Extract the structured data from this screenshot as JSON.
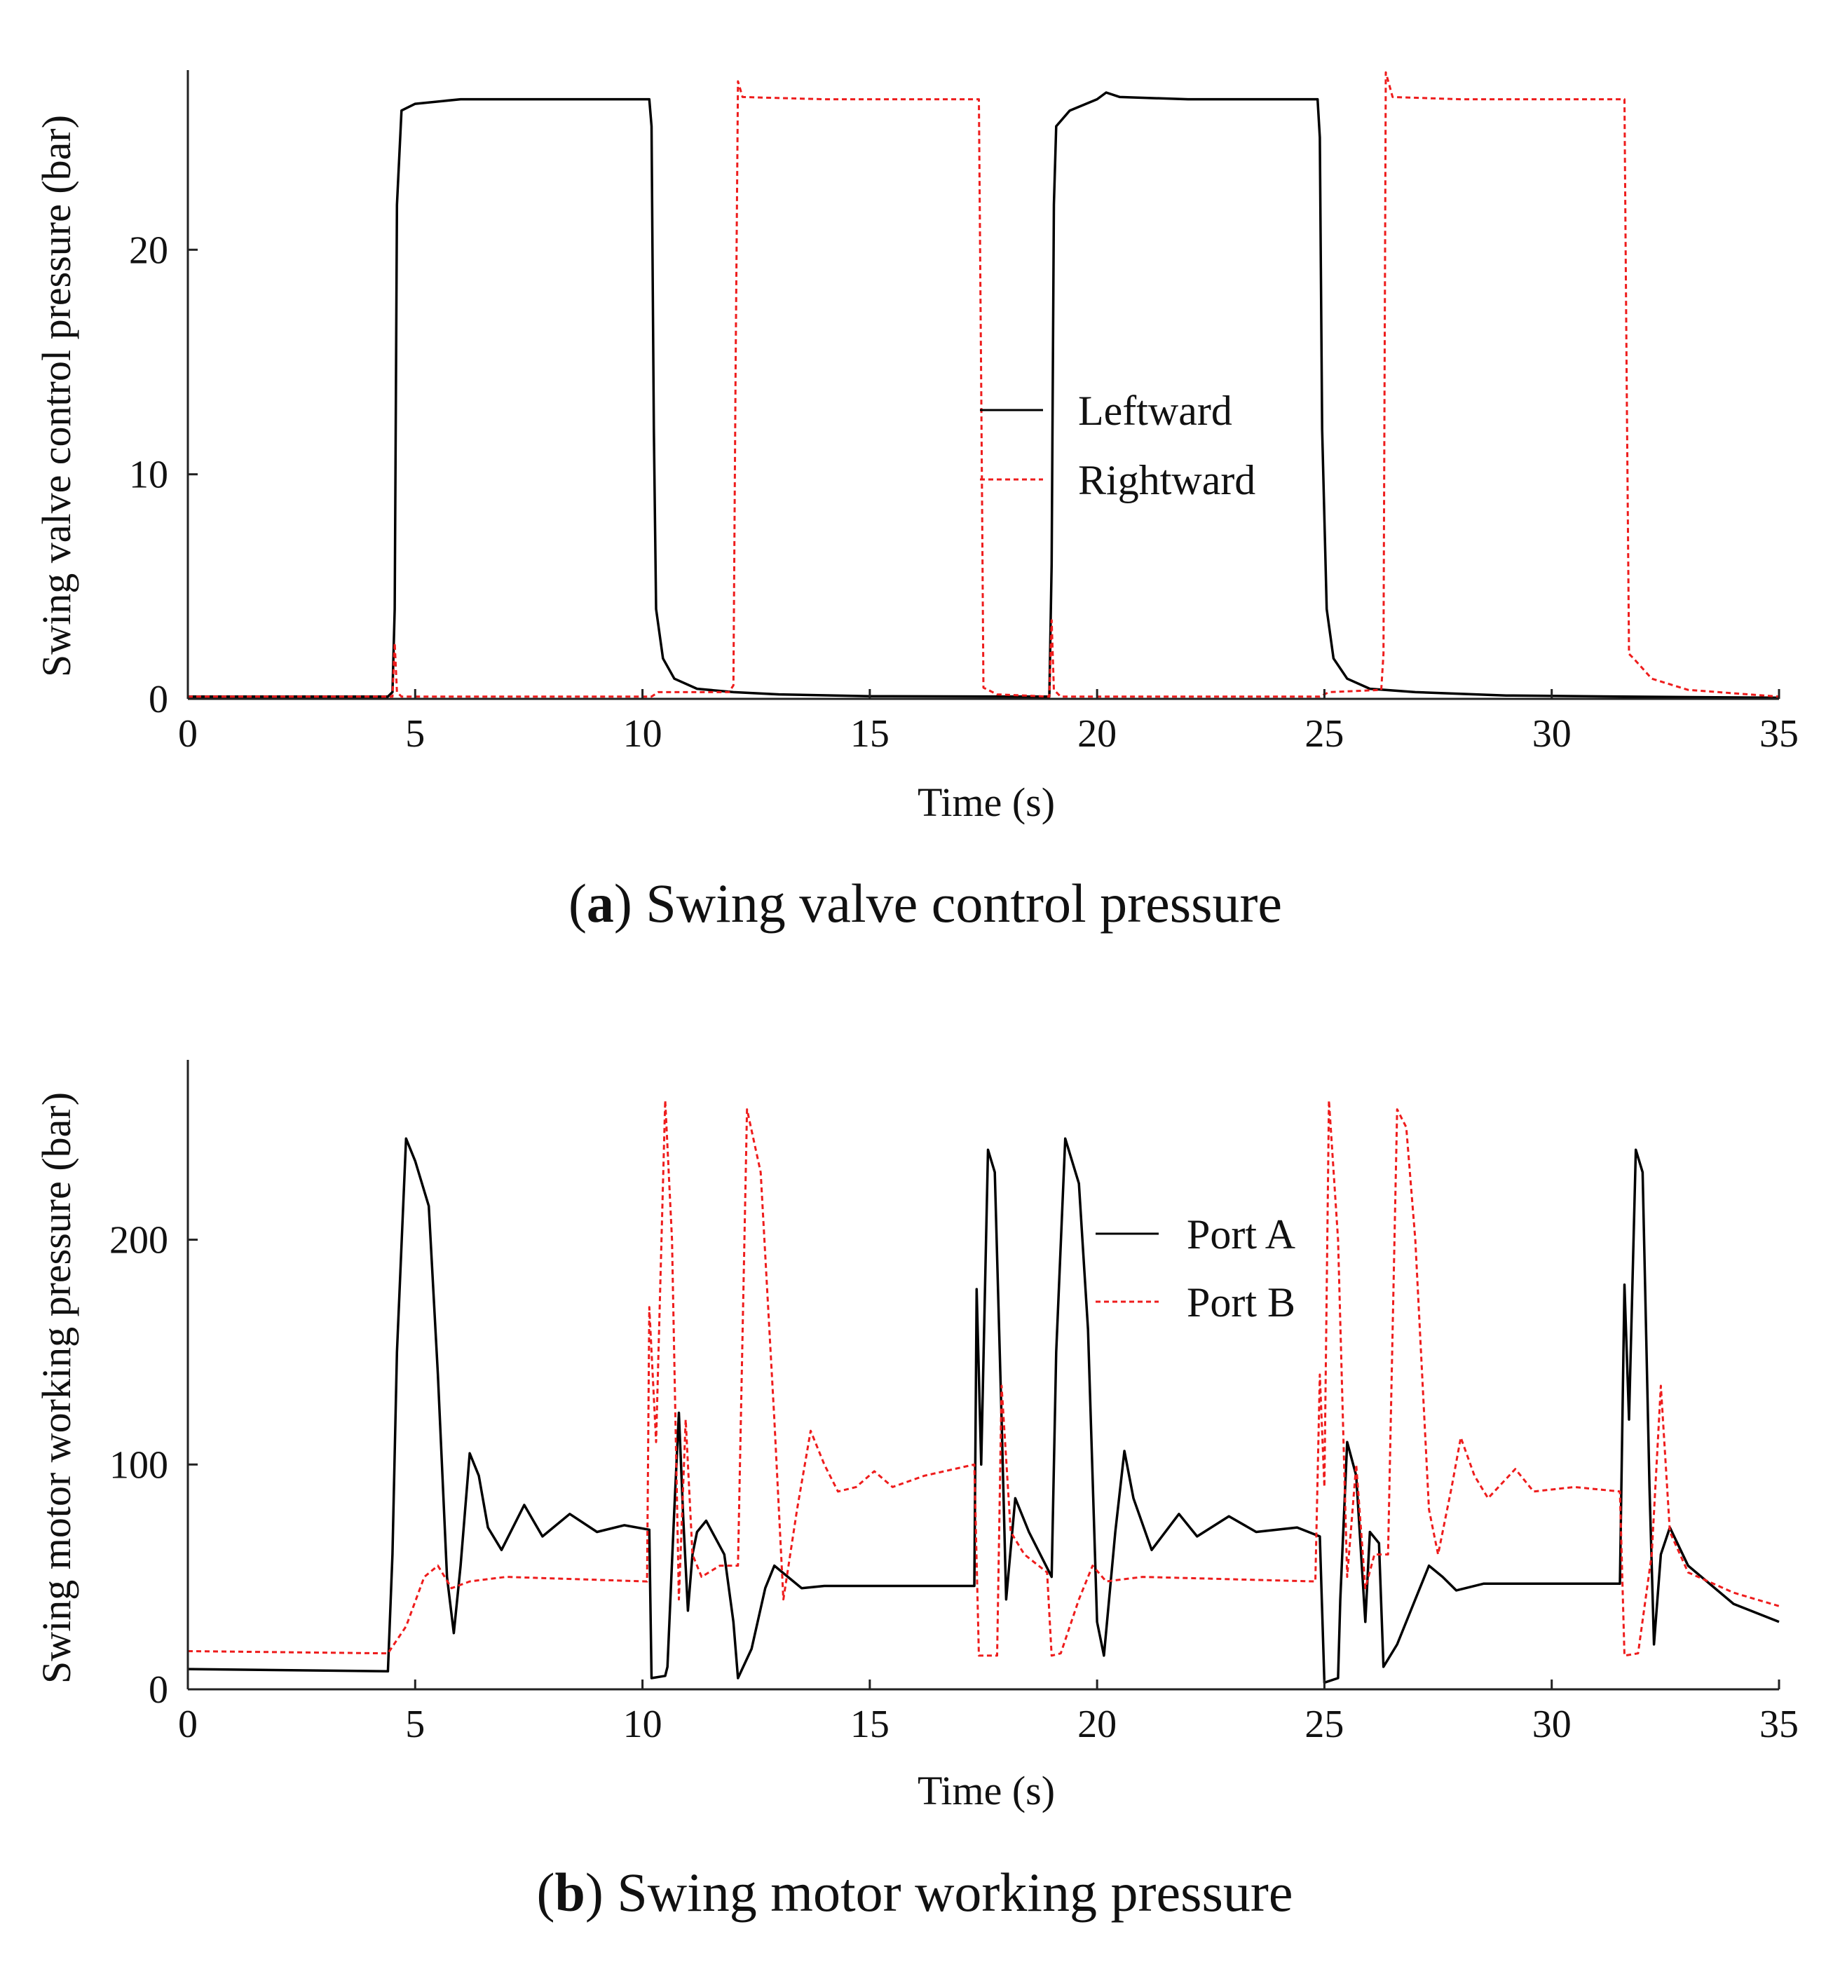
{
  "chart_data": [
    {
      "type": "line",
      "title": "",
      "caption": {
        "letter": "a",
        "text": "Swing valve control pressure"
      },
      "xlabel": "Time (s)",
      "ylabel": "Swing valve control pressure (bar)",
      "xlim": [
        0,
        35
      ],
      "ylim": [
        0,
        28
      ],
      "xticks": [
        0,
        5,
        10,
        15,
        20,
        25,
        30,
        35
      ],
      "yticks": [
        0,
        10,
        20
      ],
      "grid": false,
      "legend_position": "center-right",
      "series": [
        {
          "name": "Leftward",
          "color": "#000000",
          "dash": "solid",
          "points": [
            [
              0,
              0.1
            ],
            [
              4.4,
              0.1
            ],
            [
              4.5,
              0.3
            ],
            [
              4.55,
              4
            ],
            [
              4.6,
              22
            ],
            [
              4.7,
              26.2
            ],
            [
              5.0,
              26.5
            ],
            [
              6,
              26.7
            ],
            [
              8,
              26.7
            ],
            [
              10.1,
              26.7
            ],
            [
              10.15,
              26.7
            ],
            [
              10.2,
              25.5
            ],
            [
              10.25,
              12
            ],
            [
              10.3,
              4
            ],
            [
              10.45,
              1.8
            ],
            [
              10.7,
              0.9
            ],
            [
              11.2,
              0.45
            ],
            [
              12.0,
              0.3
            ],
            [
              13,
              0.2
            ],
            [
              15,
              0.12
            ],
            [
              18.9,
              0.1
            ],
            [
              18.95,
              0.1
            ],
            [
              19.0,
              6
            ],
            [
              19.05,
              22
            ],
            [
              19.1,
              25.5
            ],
            [
              19.4,
              26.2
            ],
            [
              20,
              26.7
            ],
            [
              20.2,
              27.0
            ],
            [
              20.5,
              26.8
            ],
            [
              22,
              26.7
            ],
            [
              24.85,
              26.7
            ],
            [
              24.9,
              25
            ],
            [
              24.95,
              12
            ],
            [
              25.05,
              4
            ],
            [
              25.2,
              1.8
            ],
            [
              25.5,
              0.9
            ],
            [
              26.0,
              0.45
            ],
            [
              27,
              0.3
            ],
            [
              29,
              0.15
            ],
            [
              31.6,
              0.1
            ],
            [
              35,
              0.05
            ]
          ]
        },
        {
          "name": "Rightward",
          "color": "#ee1c1c",
          "dash": "dashed",
          "points": [
            [
              0,
              0.1
            ],
            [
              4.5,
              0.1
            ],
            [
              4.55,
              2.5
            ],
            [
              4.6,
              0.3
            ],
            [
              4.7,
              0.1
            ],
            [
              10.2,
              0.1
            ],
            [
              10.35,
              0.3
            ],
            [
              11.9,
              0.3
            ],
            [
              12.0,
              0.6
            ],
            [
              12.05,
              15
            ],
            [
              12.1,
              27.5
            ],
            [
              12.2,
              26.8
            ],
            [
              14,
              26.7
            ],
            [
              17.4,
              26.7
            ],
            [
              17.45,
              14
            ],
            [
              17.5,
              0.5
            ],
            [
              17.8,
              0.2
            ],
            [
              18.95,
              0.1
            ],
            [
              19.0,
              3.5
            ],
            [
              19.05,
              0.4
            ],
            [
              19.2,
              0.1
            ],
            [
              24.9,
              0.1
            ],
            [
              25.1,
              0.3
            ],
            [
              26.25,
              0.4
            ],
            [
              26.3,
              2
            ],
            [
              26.35,
              27.9
            ],
            [
              26.5,
              26.8
            ],
            [
              28,
              26.7
            ],
            [
              31.6,
              26.7
            ],
            [
              31.65,
              14
            ],
            [
              31.7,
              2
            ],
            [
              31.8,
              1.8
            ],
            [
              32.2,
              0.9
            ],
            [
              33,
              0.4
            ],
            [
              35,
              0.1
            ]
          ]
        }
      ]
    },
    {
      "type": "line",
      "title": "",
      "caption": {
        "letter": "b",
        "text": "Swing motor working pressure"
      },
      "xlabel": "Time (s)",
      "ylabel": "Swing motor working pressure (bar)",
      "xlim": [
        0,
        35
      ],
      "ylim": [
        0,
        280
      ],
      "xticks": [
        0,
        5,
        10,
        15,
        20,
        25,
        30,
        35
      ],
      "yticks": [
        0,
        100,
        200
      ],
      "grid": false,
      "legend_position": "top-right",
      "series": [
        {
          "name": "Port A",
          "color": "#000000",
          "dash": "solid",
          "points": [
            [
              0,
              9
            ],
            [
              4.4,
              8
            ],
            [
              4.5,
              60
            ],
            [
              4.6,
              150
            ],
            [
              4.8,
              245
            ],
            [
              5.0,
              235
            ],
            [
              5.3,
              215
            ],
            [
              5.5,
              140
            ],
            [
              5.7,
              50
            ],
            [
              5.85,
              25
            ],
            [
              6.0,
              55
            ],
            [
              6.2,
              105
            ],
            [
              6.4,
              95
            ],
            [
              6.6,
              72
            ],
            [
              6.9,
              62
            ],
            [
              7.4,
              82
            ],
            [
              7.8,
              68
            ],
            [
              8.4,
              78
            ],
            [
              9.0,
              70
            ],
            [
              9.6,
              73
            ],
            [
              10.15,
              71
            ],
            [
              10.2,
              5
            ],
            [
              10.5,
              6
            ],
            [
              10.55,
              10
            ],
            [
              10.7,
              80
            ],
            [
              10.8,
              123
            ],
            [
              10.9,
              75
            ],
            [
              11.0,
              35
            ],
            [
              11.1,
              60
            ],
            [
              11.2,
              70
            ],
            [
              11.4,
              75
            ],
            [
              11.8,
              60
            ],
            [
              12.0,
              30
            ],
            [
              12.1,
              5
            ],
            [
              12.4,
              18
            ],
            [
              12.7,
              45
            ],
            [
              12.9,
              55
            ],
            [
              13.2,
              50
            ],
            [
              13.5,
              45
            ],
            [
              14,
              46
            ],
            [
              17.3,
              46
            ],
            [
              17.35,
              178
            ],
            [
              17.45,
              100
            ],
            [
              17.6,
              240
            ],
            [
              17.75,
              230
            ],
            [
              17.9,
              120
            ],
            [
              18.0,
              40
            ],
            [
              18.2,
              85
            ],
            [
              18.5,
              70
            ],
            [
              19.0,
              50
            ],
            [
              19.1,
              150
            ],
            [
              19.3,
              245
            ],
            [
              19.6,
              225
            ],
            [
              19.8,
              160
            ],
            [
              20.0,
              30
            ],
            [
              20.15,
              15
            ],
            [
              20.4,
              70
            ],
            [
              20.6,
              106
            ],
            [
              20.8,
              85
            ],
            [
              21.2,
              62
            ],
            [
              21.8,
              78
            ],
            [
              22.2,
              68
            ],
            [
              22.9,
              77
            ],
            [
              23.5,
              70
            ],
            [
              24.4,
              72
            ],
            [
              24.9,
              68
            ],
            [
              25.0,
              3
            ],
            [
              25.3,
              5
            ],
            [
              25.35,
              40
            ],
            [
              25.5,
              110
            ],
            [
              25.7,
              95
            ],
            [
              25.9,
              30
            ],
            [
              26.0,
              70
            ],
            [
              26.2,
              65
            ],
            [
              26.3,
              10
            ],
            [
              26.6,
              20
            ],
            [
              27.0,
              40
            ],
            [
              27.3,
              55
            ],
            [
              27.6,
              50
            ],
            [
              27.9,
              44
            ],
            [
              28.5,
              47
            ],
            [
              31.5,
              47
            ],
            [
              31.6,
              180
            ],
            [
              31.7,
              120
            ],
            [
              31.85,
              240
            ],
            [
              32.0,
              230
            ],
            [
              32.15,
              90
            ],
            [
              32.25,
              20
            ],
            [
              32.4,
              60
            ],
            [
              32.6,
              72
            ],
            [
              33.0,
              55
            ],
            [
              34.0,
              38
            ],
            [
              35,
              30
            ]
          ]
        },
        {
          "name": "Port B",
          "color": "#ee1c1c",
          "dash": "dashed",
          "points": [
            [
              0,
              17
            ],
            [
              4.4,
              16
            ],
            [
              4.8,
              28
            ],
            [
              5.2,
              50
            ],
            [
              5.5,
              55
            ],
            [
              5.8,
              45
            ],
            [
              6.2,
              48
            ],
            [
              7,
              50
            ],
            [
              10.1,
              48
            ],
            [
              10.15,
              170
            ],
            [
              10.3,
              110
            ],
            [
              10.5,
              262
            ],
            [
              10.65,
              200
            ],
            [
              10.8,
              40
            ],
            [
              10.95,
              120
            ],
            [
              11.1,
              60
            ],
            [
              11.3,
              50
            ],
            [
              11.7,
              55
            ],
            [
              12.1,
              55
            ],
            [
              12.3,
              258
            ],
            [
              12.6,
              230
            ],
            [
              12.9,
              120
            ],
            [
              13.1,
              40
            ],
            [
              13.4,
              80
            ],
            [
              13.7,
              115
            ],
            [
              14.0,
              100
            ],
            [
              14.3,
              88
            ],
            [
              14.7,
              90
            ],
            [
              15.1,
              97
            ],
            [
              15.5,
              90
            ],
            [
              16.2,
              95
            ],
            [
              17.3,
              100
            ],
            [
              17.4,
              15
            ],
            [
              17.8,
              15
            ],
            [
              17.9,
              135
            ],
            [
              18.1,
              70
            ],
            [
              18.4,
              60
            ],
            [
              18.9,
              52
            ],
            [
              19.0,
              15
            ],
            [
              19.2,
              16
            ],
            [
              19.6,
              40
            ],
            [
              19.9,
              55
            ],
            [
              20.2,
              48
            ],
            [
              21,
              50
            ],
            [
              24.8,
              48
            ],
            [
              24.9,
              140
            ],
            [
              25.0,
              90
            ],
            [
              25.1,
              262
            ],
            [
              25.3,
              200
            ],
            [
              25.5,
              50
            ],
            [
              25.7,
              100
            ],
            [
              25.9,
              45
            ],
            [
              26.1,
              60
            ],
            [
              26.4,
              60
            ],
            [
              26.6,
              258
            ],
            [
              26.8,
              250
            ],
            [
              27.0,
              200
            ],
            [
              27.3,
              80
            ],
            [
              27.5,
              60
            ],
            [
              27.8,
              90
            ],
            [
              28.0,
              112
            ],
            [
              28.3,
              95
            ],
            [
              28.6,
              85
            ],
            [
              29.2,
              98
            ],
            [
              29.6,
              88
            ],
            [
              30.5,
              90
            ],
            [
              31.5,
              88
            ],
            [
              31.6,
              15
            ],
            [
              31.9,
              16
            ],
            [
              32.2,
              60
            ],
            [
              32.4,
              135
            ],
            [
              32.6,
              70
            ],
            [
              33.0,
              52
            ],
            [
              34.0,
              43
            ],
            [
              35,
              37
            ]
          ]
        }
      ]
    }
  ],
  "figure": {
    "panels": [
      {
        "caption_open": "(",
        "caption_letter": "a",
        "caption_close": ")",
        "caption_text": " Swing valve control pressure",
        "tick_x": [
          "0",
          "5",
          "10",
          "15",
          "20",
          "25",
          "30",
          "35"
        ],
        "tick_y": [
          "0",
          "10",
          "20"
        ],
        "xlabel": "Time (s)",
        "ylabel": "Swing valve control pressure (bar)",
        "legend": [
          "Leftward",
          "Rightward"
        ]
      },
      {
        "caption_open": "(",
        "caption_letter": "b",
        "caption_close": ")",
        "caption_text": " Swing motor working pressure",
        "tick_x": [
          "0",
          "5",
          "10",
          "15",
          "20",
          "25",
          "30",
          "35"
        ],
        "tick_y": [
          "0",
          "100",
          "200"
        ],
        "xlabel": "Time (s)",
        "ylabel": "Swing motor working pressure (bar)",
        "legend": [
          "Port A",
          "Port B"
        ]
      }
    ]
  }
}
